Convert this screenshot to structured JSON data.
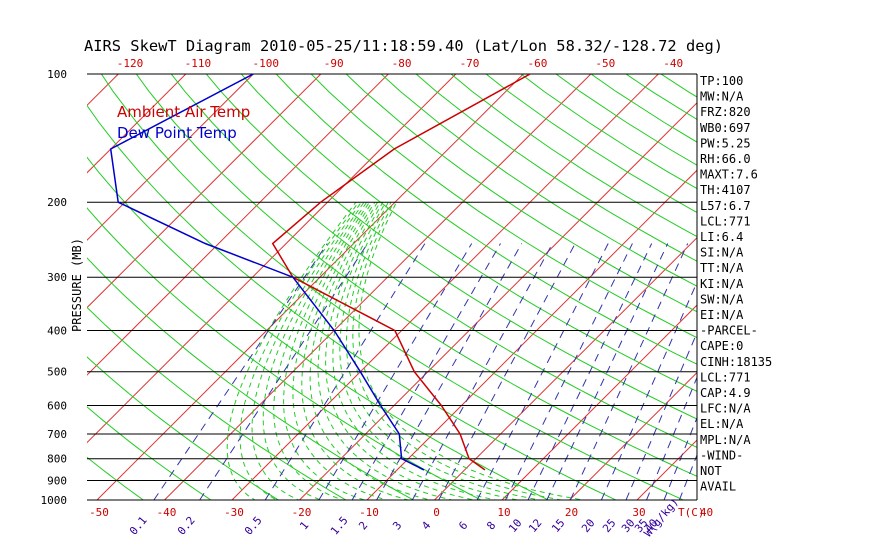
{
  "page": {
    "title": "AIRS SkewT Diagram 2010-05-25/11:18:59.40 (Lat/Lon 58.32/-128.72 deg)"
  },
  "colors": {
    "temp_line": "#cc0000",
    "dewpoint_line": "#0000cc",
    "isotherm": "#dd3333",
    "dry_adiabat": "#22cc22",
    "moist_adiabat": "#22cc22",
    "mixing_ratio": "#3333aa",
    "text_red": "#cc0000",
    "text_black": "#000000",
    "text_purple": "#330099"
  },
  "chart_data": {
    "type": "line",
    "title": "AIRS SkewT Diagram 2010-05-25/11:18:59.40 (Lat/Lon 58.32/-128.72 deg)",
    "ylabel": "PRESSURE (MB)",
    "xlabel": "T(C)",
    "mixing_ratio_unit": "W(g/kg)",
    "pressure_levels": [
      100,
      200,
      300,
      400,
      500,
      600,
      700,
      800,
      900,
      1000
    ],
    "pressure_ticks": [
      "100",
      "200",
      "300",
      "400",
      "500",
      "600",
      "700",
      "800",
      "900",
      "1000"
    ],
    "top_temp_ticks": [
      "-120",
      "-110",
      "-100",
      "-90",
      "-80",
      "-70",
      "-60",
      "-50",
      "-40"
    ],
    "bottom_temp_ticks": [
      "-50",
      "-40",
      "-30",
      "-20",
      "-10",
      "0",
      "10",
      "20",
      "30",
      "40"
    ],
    "mixing_ratio_ticks": [
      "0.1",
      "0.2",
      "0.5",
      "1",
      "1.5",
      "2",
      "3",
      "4",
      "6",
      "8",
      "10",
      "12",
      "15",
      "20",
      "25",
      "30",
      "35",
      "40"
    ],
    "legend": [
      "Ambient Air Temp",
      "Dew Point Temp"
    ],
    "legend_placement": "top-left",
    "series": [
      {
        "name": "Ambient Air Temp",
        "points": [
          [
            100,
            -49
          ],
          [
            150,
            -58
          ],
          [
            200,
            -61
          ],
          [
            250,
            -62
          ],
          [
            300,
            -54
          ],
          [
            400,
            -31
          ],
          [
            500,
            -22
          ],
          [
            600,
            -13
          ],
          [
            700,
            -6
          ],
          [
            800,
            -1
          ],
          [
            850,
            3
          ]
        ]
      },
      {
        "name": "Dew Point Temp",
        "points": [
          [
            100,
            -90
          ],
          [
            150,
            -100
          ],
          [
            200,
            -91
          ],
          [
            250,
            -72
          ],
          [
            300,
            -54
          ],
          [
            400,
            -40
          ],
          [
            500,
            -30
          ],
          [
            600,
            -22
          ],
          [
            700,
            -15
          ],
          [
            800,
            -11
          ],
          [
            850,
            -6
          ]
        ]
      }
    ]
  },
  "indices": [
    "TP:100",
    "MW:N/A",
    "FRZ:820",
    "WB0:697",
    "PW:5.25",
    "RH:66.0",
    "MAXT:7.6",
    "TH:4107",
    "L57:6.7",
    "LCL:771",
    "LI:6.4",
    "SI:N/A",
    "TT:N/A",
    "KI:N/A",
    "SW:N/A",
    "EI:N/A",
    "-PARCEL-",
    "CAPE:0",
    "CINH:18135",
    "LCL:771",
    "CAP:4.9",
    "LFC:N/A",
    "EL:N/A",
    "MPL:N/A",
    "-WIND-",
    "NOT",
    "AVAIL"
  ]
}
